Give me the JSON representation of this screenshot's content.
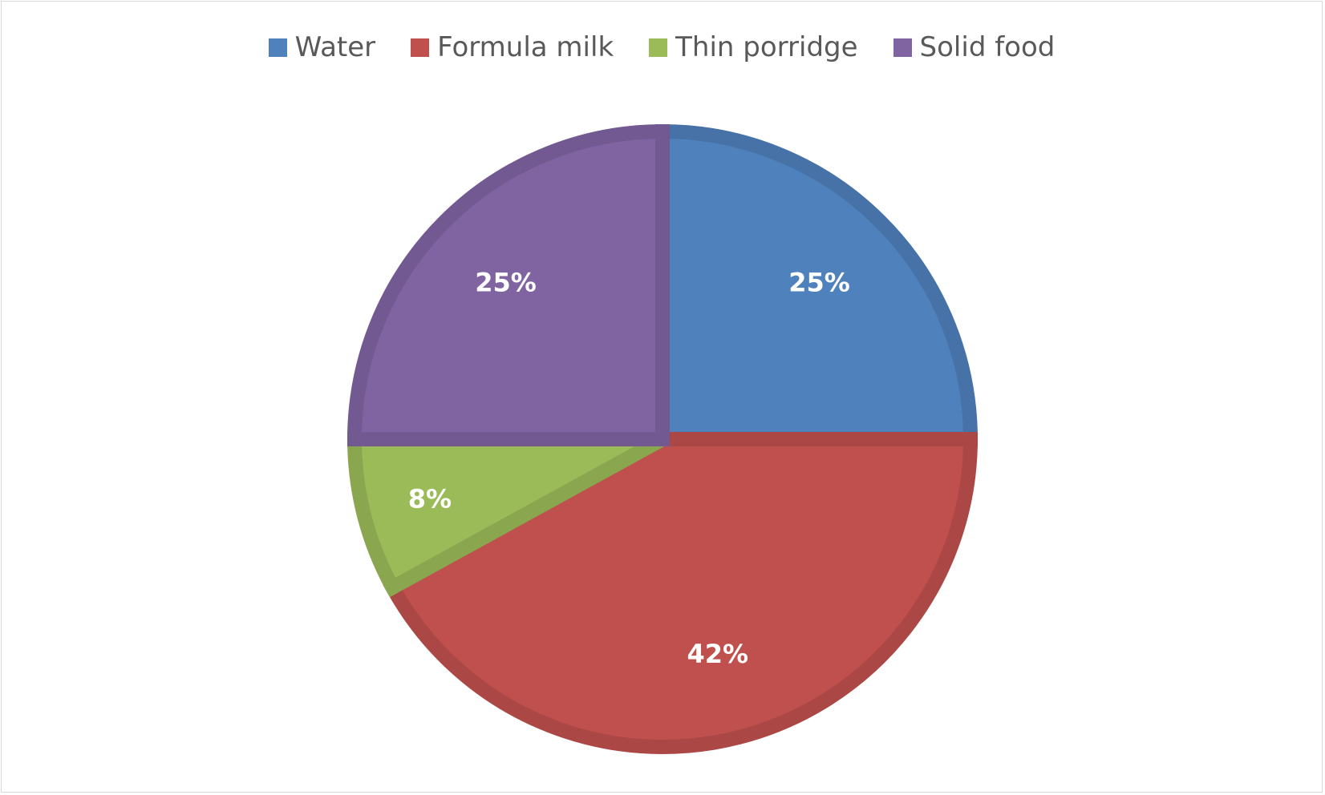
{
  "chart_data": {
    "type": "pie",
    "title": "",
    "legend_position": "top",
    "categories": [
      "Water",
      "Formula milk",
      "Thin porridge",
      "Solid food"
    ],
    "values": [
      25,
      42,
      8,
      25
    ],
    "labels": [
      "25%",
      "42%",
      "8%",
      "25%"
    ],
    "colors": [
      "#4F81BD",
      "#C0504D",
      "#9BBB59",
      "#8064A2"
    ],
    "border_colors": [
      "#4672A8",
      "#AB4744",
      "#8AA64F",
      "#725991"
    ]
  }
}
